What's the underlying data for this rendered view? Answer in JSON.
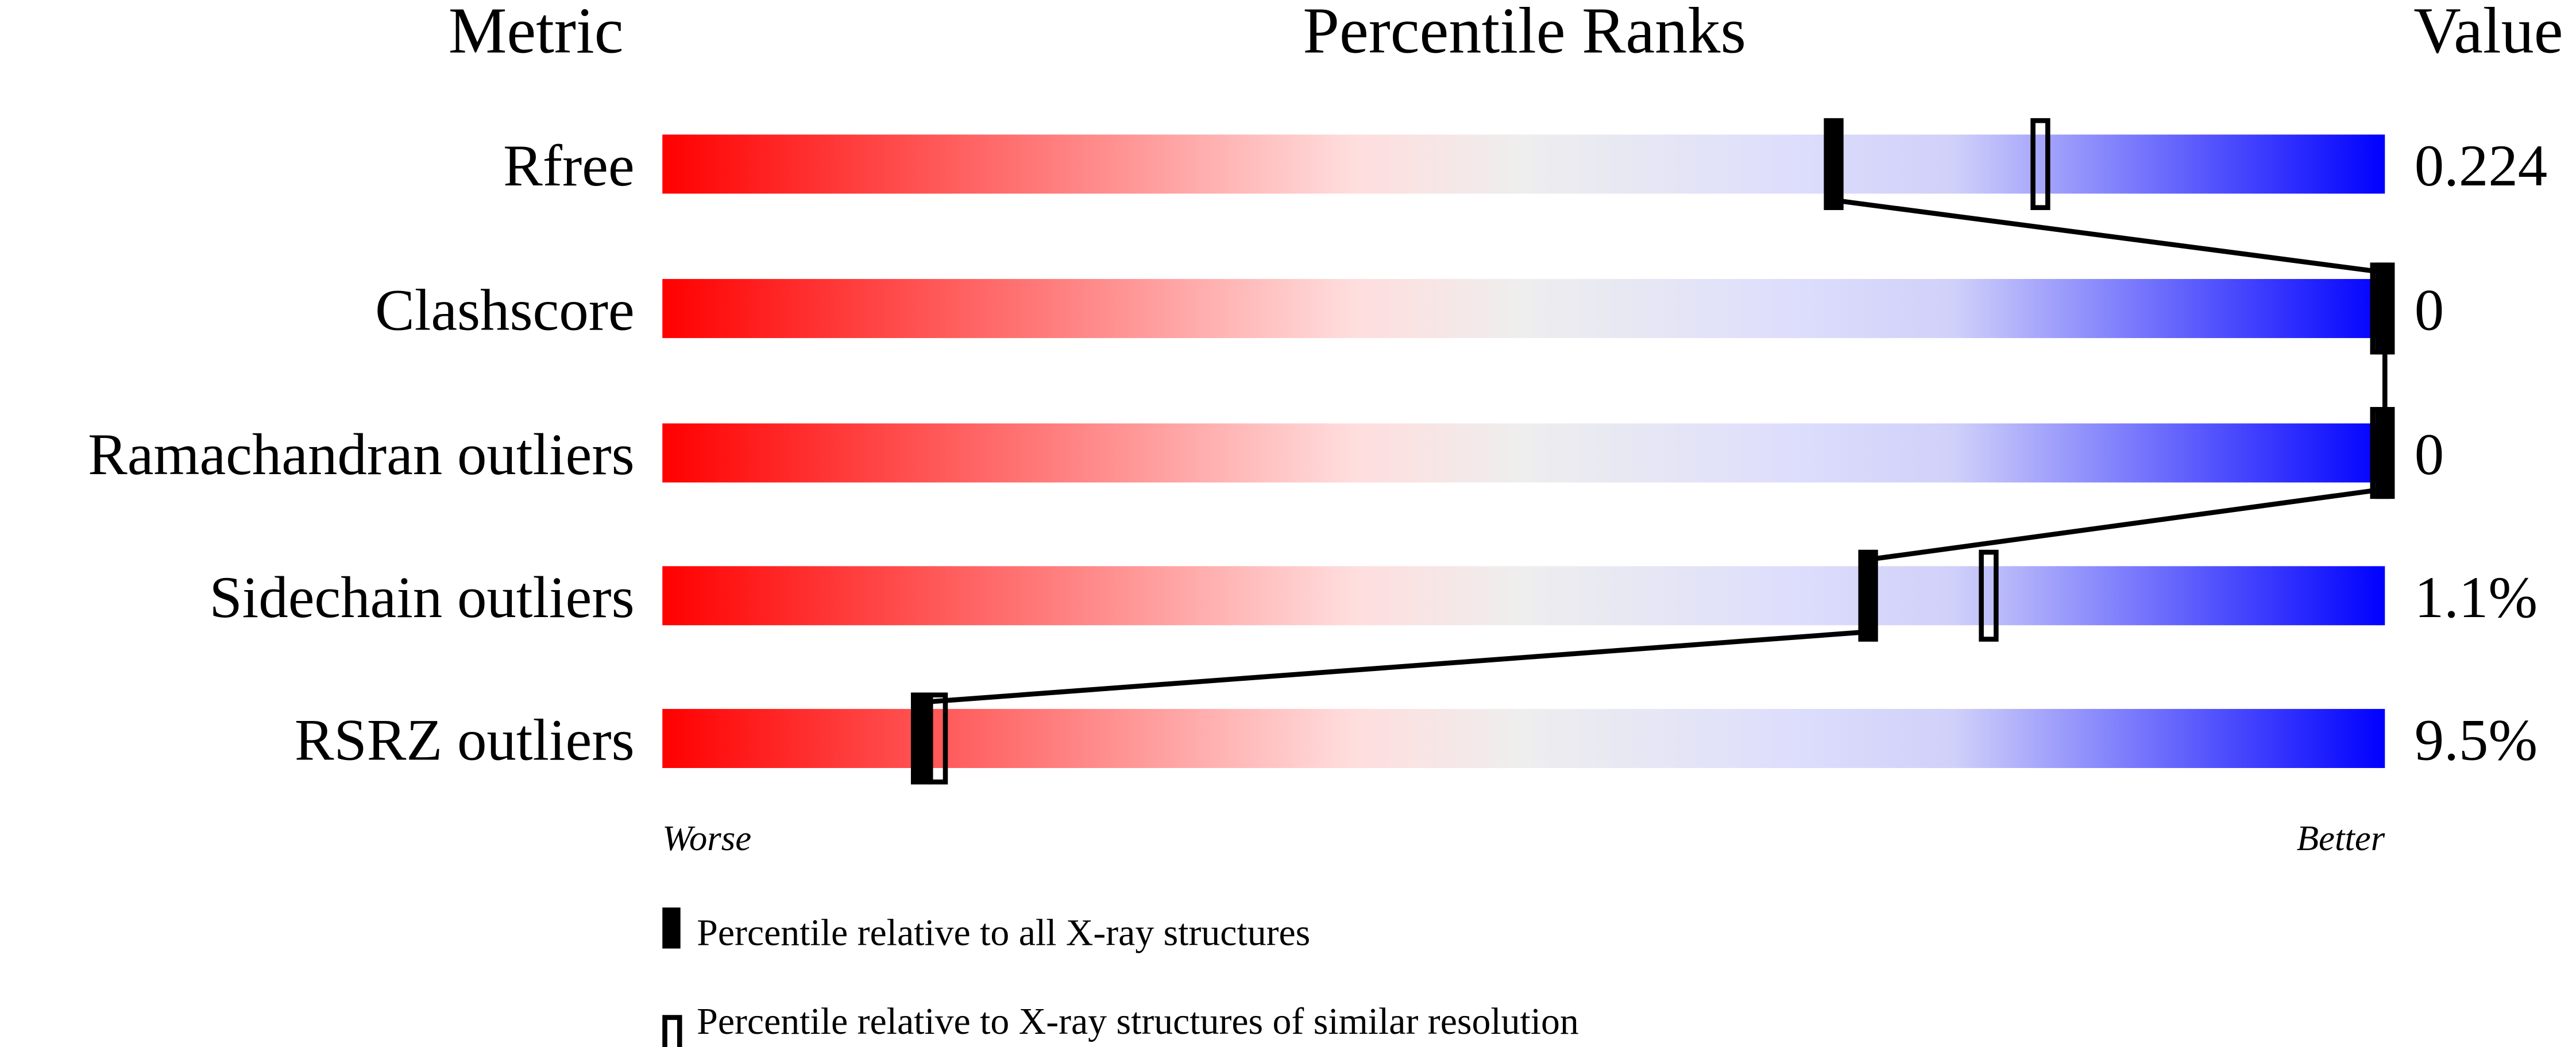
{
  "chart_data": {
    "type": "percentile-slider",
    "headers": {
      "metric": "Metric",
      "ranks": "Percentile Ranks",
      "value": "Value"
    },
    "xlim": [
      0,
      100
    ],
    "axis_labels": {
      "left": "Worse",
      "right": "Better"
    },
    "gradient_colors": [
      "#ff0000",
      "#ffdddd",
      "#eeeeee",
      "#dedefc",
      "#0000ff"
    ],
    "metrics": [
      {
        "name": "Rfree",
        "value": "0.224",
        "percentile_all": 68,
        "percentile_similar": 80
      },
      {
        "name": "Clashscore",
        "value": "0",
        "percentile_all": 100,
        "percentile_similar": 100
      },
      {
        "name": "Ramachandran outliers",
        "value": "0",
        "percentile_all": 100,
        "percentile_similar": 100
      },
      {
        "name": "Sidechain outliers",
        "value": "1.1%",
        "percentile_all": 70,
        "percentile_similar": 77
      },
      {
        "name": "RSRZ outliers",
        "value": "9.5%",
        "percentile_all": 15,
        "percentile_similar": 16
      }
    ],
    "legend": [
      {
        "marker": "filled",
        "label": "Percentile relative to all X-ray structures"
      },
      {
        "marker": "open",
        "label": "Percentile relative to X-ray structures of similar resolution"
      }
    ]
  }
}
